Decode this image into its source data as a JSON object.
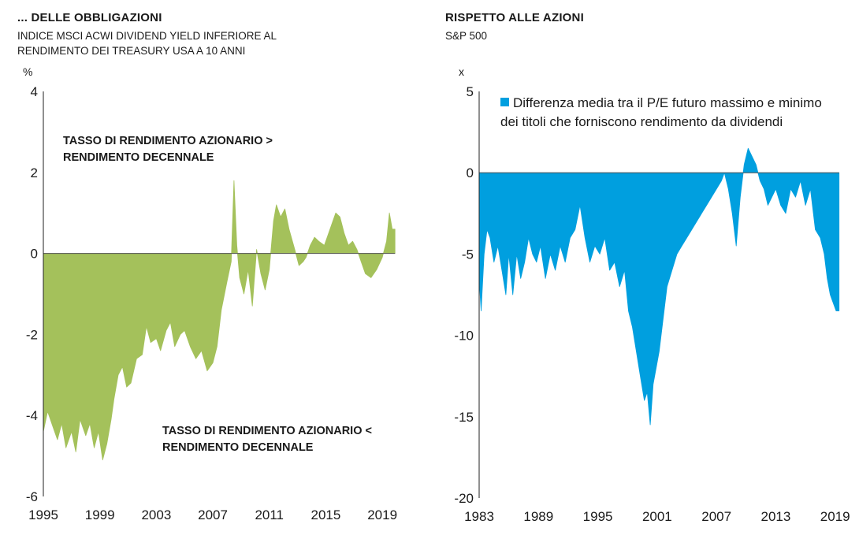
{
  "left": {
    "title": "... DELLE OBBLIGAZIONI",
    "subtitle": "INDICE MSCI ACWI DIVIDEND YIELD INFERIORE AL RENDIMENTO DEI TREASURY USA A 10 ANNI",
    "annotation_top": "TASSO DI RENDIMENTO AZIONARIO > RENDIMENTO DECENNALE",
    "annotation_bottom": "TASSO DI RENDIMENTO AZIONARIO < RENDIMENTO DECENNALE"
  },
  "right": {
    "title": "RISPETTO ALLE AZIONI",
    "subtitle": "S&P 500"
  },
  "chart_data": [
    {
      "type": "area",
      "title": "... DELLE OBBLIGAZIONI",
      "subtitle": "INDICE MSCI ACWI DIVIDEND YIELD INFERIORE AL RENDIMENTO DEI TREASURY USA A 10 ANNI",
      "ylabel": "%",
      "xlim": [
        1995,
        2020.5
      ],
      "ylim": [
        -6,
        4
      ],
      "yticks": [
        4,
        2,
        0,
        -2,
        -4,
        -6
      ],
      "xticks": [
        1995,
        1999,
        2003,
        2007,
        2011,
        2015,
        2019
      ],
      "grid": false,
      "color": "#A4C15B",
      "series": [
        {
          "x": [
            1995.0,
            1995.3,
            1995.7,
            1996.0,
            1996.3,
            1996.6,
            1997.0,
            1997.3,
            1997.6,
            1998.0,
            1998.3,
            1998.6,
            1998.9,
            1999.2,
            1999.5,
            1999.8,
            2000.0,
            2000.3,
            2000.6,
            2000.9,
            2001.2,
            2001.6,
            2002.0,
            2002.3,
            2002.6,
            2003.0,
            2003.3,
            2003.7,
            2004.0,
            2004.3,
            2004.7,
            2005.0,
            2005.4,
            2005.8,
            2006.2,
            2006.6,
            2007.0,
            2007.3,
            2007.6,
            2008.0,
            2008.3,
            2008.5,
            2008.7,
            2008.9,
            2009.2,
            2009.5,
            2009.8,
            2010.1,
            2010.4,
            2010.7,
            2011.0,
            2011.3,
            2011.5,
            2011.8,
            2012.1,
            2012.4,
            2012.8,
            2013.1,
            2013.4,
            2013.6,
            2013.9,
            2014.2,
            2014.5,
            2014.9,
            2015.3,
            2015.7,
            2016.0,
            2016.3,
            2016.6,
            2016.9,
            2017.2,
            2017.5,
            2017.8,
            2018.2,
            2018.6,
            2019.0,
            2019.3,
            2019.5,
            2019.7,
            2019.9
          ],
          "y": [
            -4.4,
            -3.9,
            -4.3,
            -4.6,
            -4.2,
            -4.8,
            -4.4,
            -4.9,
            -4.1,
            -4.5,
            -4.2,
            -4.8,
            -4.4,
            -5.1,
            -4.7,
            -4.1,
            -3.6,
            -3.0,
            -2.8,
            -3.3,
            -3.2,
            -2.6,
            -2.5,
            -1.8,
            -2.2,
            -2.1,
            -2.4,
            -1.9,
            -1.7,
            -2.3,
            -2.0,
            -1.9,
            -2.3,
            -2.6,
            -2.4,
            -2.9,
            -2.7,
            -2.3,
            -1.4,
            -0.7,
            -0.2,
            1.8,
            0.2,
            -0.6,
            -1.0,
            -0.4,
            -1.3,
            0.1,
            -0.5,
            -0.9,
            -0.4,
            0.8,
            1.2,
            0.9,
            1.1,
            0.6,
            0.1,
            -0.3,
            -0.2,
            -0.1,
            0.2,
            0.4,
            0.3,
            0.2,
            0.6,
            1.0,
            0.9,
            0.5,
            0.2,
            0.3,
            0.1,
            -0.2,
            -0.5,
            -0.6,
            -0.4,
            -0.1,
            0.3,
            1.0,
            0.6,
            0.6
          ]
        }
      ]
    },
    {
      "type": "area",
      "title": "RISPETTO ALLE AZIONI",
      "subtitle": "S&P 500",
      "ylabel": "x",
      "xlim": [
        1983,
        2019.5
      ],
      "ylim": [
        -20,
        5
      ],
      "yticks": [
        5,
        0,
        -5,
        -10,
        -15,
        -20
      ],
      "xticks": [
        1983,
        1989,
        1995,
        2001,
        2007,
        2013,
        2019
      ],
      "grid": false,
      "color": "#009FDF",
      "legend": "Differenza media tra il P/E futuro massimo e minimo dei titoli che forniscono rendimento da dividendi",
      "legend_position": "top",
      "series": [
        {
          "name": "Differenza media tra il P/E futuro massimo e minimo dei titoli che forniscono rendimento da dividendi",
          "x": [
            1983.0,
            1983.2,
            1983.5,
            1983.8,
            1984.1,
            1984.5,
            1984.9,
            1985.3,
            1985.7,
            1986.0,
            1986.4,
            1986.8,
            1987.2,
            1987.6,
            1988.0,
            1988.4,
            1988.8,
            1989.2,
            1989.7,
            1990.2,
            1990.7,
            1991.2,
            1991.7,
            1992.2,
            1992.7,
            1993.2,
            1993.7,
            1994.2,
            1994.7,
            1995.2,
            1995.7,
            1996.2,
            1996.7,
            1997.2,
            1997.7,
            1998.1,
            1998.5,
            1998.9,
            1999.3,
            1999.7,
            2000.0,
            2000.3,
            2000.6,
            2000.9,
            2001.2,
            2001.6,
            2002.0,
            2002.5,
            2003.0,
            2003.5,
            2004.0,
            2004.5,
            2005.0,
            2005.5,
            2006.0,
            2006.5,
            2007.0,
            2007.5,
            2007.8,
            2008.2,
            2008.6,
            2009.0,
            2009.4,
            2009.8,
            2010.2,
            2010.6,
            2011.0,
            2011.4,
            2011.8,
            2012.2,
            2012.6,
            2013.0,
            2013.5,
            2014.0,
            2014.5,
            2015.0,
            2015.5,
            2016.0,
            2016.5,
            2017.0,
            2017.5,
            2017.9,
            2018.2,
            2018.5,
            2018.8,
            2019.1,
            2019.4
          ],
          "y": [
            -6.5,
            -8.5,
            -5.0,
            -3.5,
            -4.0,
            -5.5,
            -4.5,
            -6.0,
            -7.5,
            -5.0,
            -7.5,
            -5.0,
            -6.5,
            -5.5,
            -4.0,
            -5.0,
            -5.5,
            -4.5,
            -6.5,
            -5.0,
            -6.0,
            -4.5,
            -5.5,
            -4.0,
            -3.5,
            -2.0,
            -4.0,
            -5.5,
            -4.5,
            -5.0,
            -4.0,
            -6.0,
            -5.5,
            -7.0,
            -6.0,
            -8.5,
            -9.5,
            -11.0,
            -12.5,
            -14.0,
            -13.5,
            -15.5,
            -13.0,
            -12.0,
            -11.0,
            -9.0,
            -7.0,
            -6.0,
            -5.0,
            -4.5,
            -4.0,
            -3.5,
            -3.0,
            -2.5,
            -2.0,
            -1.5,
            -1.0,
            -0.5,
            0.0,
            -1.0,
            -2.5,
            -4.5,
            -1.5,
            0.5,
            1.5,
            1.0,
            0.5,
            -0.5,
            -1.0,
            -2.0,
            -1.5,
            -1.0,
            -2.0,
            -2.5,
            -1.0,
            -1.5,
            -0.5,
            -2.0,
            -1.0,
            -3.5,
            -4.0,
            -5.0,
            -6.5,
            -7.5,
            -8.0,
            -8.5,
            -8.5
          ]
        }
      ]
    }
  ]
}
